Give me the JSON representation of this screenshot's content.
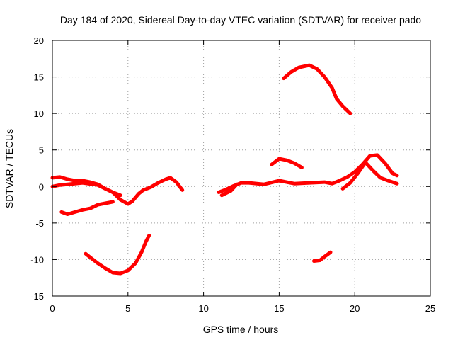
{
  "chart_data": {
    "type": "line",
    "title": "Day 184 of 2020, Sidereal Day-to-day VTEC variation (SDTVAR) for receiver pado",
    "xlabel": "GPS time / hours",
    "ylabel": "SDTVAR / TECUs",
    "xlim": [
      0,
      25
    ],
    "ylim": [
      -15,
      20
    ],
    "grid": true,
    "x_ticks": [
      0,
      5,
      10,
      15,
      20,
      25
    ],
    "y_ticks": [
      -15,
      -10,
      -5,
      0,
      5,
      10,
      15,
      20
    ],
    "x_tick_labels": [
      "0",
      "5",
      "10",
      "15",
      "20",
      "25"
    ],
    "y_tick_labels": [
      "-15",
      "-10",
      "-5",
      "0",
      "5",
      "10",
      "15",
      "20"
    ],
    "color": "#ff0000",
    "series": [
      {
        "name": "arc-1",
        "points": [
          [
            0,
            1.2
          ],
          [
            0.5,
            1.3
          ],
          [
            1,
            1.0
          ],
          [
            1.5,
            0.8
          ],
          [
            2,
            0.8
          ],
          [
            2.5,
            0.6
          ],
          [
            3,
            0.3
          ],
          [
            3.5,
            -0.3
          ],
          [
            4,
            -0.8
          ],
          [
            4.5,
            -1.8
          ],
          [
            5,
            -2.4
          ],
          [
            5.3,
            -2.0
          ],
          [
            5.7,
            -1.0
          ],
          [
            6,
            -0.5
          ],
          [
            6.5,
            -0.1
          ],
          [
            7,
            0.5
          ],
          [
            7.5,
            1.0
          ],
          [
            7.8,
            1.2
          ],
          [
            8.2,
            0.6
          ],
          [
            8.6,
            -0.5
          ]
        ]
      },
      {
        "name": "arc-2",
        "points": [
          [
            0,
            0
          ],
          [
            0.5,
            0.2
          ],
          [
            1,
            0.3
          ],
          [
            2,
            0.5
          ],
          [
            3,
            0.2
          ],
          [
            4,
            -0.8
          ],
          [
            4.5,
            -1.2
          ]
        ]
      },
      {
        "name": "arc-3",
        "points": [
          [
            0.6,
            -3.5
          ],
          [
            1,
            -3.8
          ],
          [
            1.5,
            -3.5
          ],
          [
            2,
            -3.2
          ],
          [
            2.5,
            -3.0
          ],
          [
            3,
            -2.5
          ],
          [
            3.5,
            -2.3
          ],
          [
            4,
            -2.1
          ]
        ]
      },
      {
        "name": "arc-4",
        "points": [
          [
            2.2,
            -9.2
          ],
          [
            2.5,
            -9.7
          ],
          [
            3,
            -10.5
          ],
          [
            3.5,
            -11.2
          ],
          [
            4,
            -11.8
          ],
          [
            4.5,
            -11.9
          ],
          [
            5,
            -11.5
          ],
          [
            5.5,
            -10.5
          ],
          [
            5.9,
            -9
          ],
          [
            6.2,
            -7.5
          ],
          [
            6.4,
            -6.7
          ]
        ]
      },
      {
        "name": "arc-5",
        "points": [
          [
            11,
            -0.8
          ],
          [
            11.5,
            -0.4
          ],
          [
            12,
            0.1
          ],
          [
            12.5,
            0.5
          ],
          [
            13,
            0.5
          ],
          [
            14,
            0.3
          ],
          [
            15,
            0.8
          ],
          [
            16,
            0.4
          ],
          [
            17,
            0.5
          ],
          [
            18,
            0.6
          ],
          [
            18.5,
            0.4
          ],
          [
            19,
            0.8
          ],
          [
            19.5,
            1.3
          ],
          [
            20,
            2.0
          ],
          [
            20.5,
            3.0
          ],
          [
            21,
            4.2
          ],
          [
            21.5,
            4.3
          ],
          [
            22,
            3.2
          ],
          [
            22.5,
            1.8
          ],
          [
            22.8,
            1.5
          ]
        ]
      },
      {
        "name": "arc-6",
        "points": [
          [
            11.2,
            -1.2
          ],
          [
            11.8,
            -0.6
          ],
          [
            12.2,
            0.3
          ]
        ]
      },
      {
        "name": "arc-7",
        "points": [
          [
            15.3,
            14.8
          ],
          [
            15.8,
            15.7
          ],
          [
            16.3,
            16.3
          ],
          [
            17,
            16.6
          ],
          [
            17.5,
            16.1
          ],
          [
            18,
            15.0
          ],
          [
            18.5,
            13.5
          ],
          [
            18.8,
            12.0
          ],
          [
            19.2,
            11.0
          ],
          [
            19.7,
            10.0
          ]
        ]
      },
      {
        "name": "arc-8",
        "points": [
          [
            14.5,
            3.0
          ],
          [
            15,
            3.8
          ],
          [
            15.5,
            3.6
          ],
          [
            16,
            3.2
          ],
          [
            16.5,
            2.6
          ]
        ]
      },
      {
        "name": "arc-9",
        "points": [
          [
            17.3,
            -10.2
          ],
          [
            17.7,
            -10.1
          ],
          [
            18,
            -9.6
          ],
          [
            18.4,
            -9.0
          ]
        ]
      },
      {
        "name": "arc-10",
        "points": [
          [
            19.2,
            -0.3
          ],
          [
            19.7,
            0.5
          ],
          [
            20.2,
            1.8
          ],
          [
            20.7,
            3.3
          ],
          [
            21.2,
            2.2
          ],
          [
            21.7,
            1.2
          ],
          [
            22.2,
            0.8
          ],
          [
            22.8,
            0.4
          ]
        ]
      }
    ]
  }
}
